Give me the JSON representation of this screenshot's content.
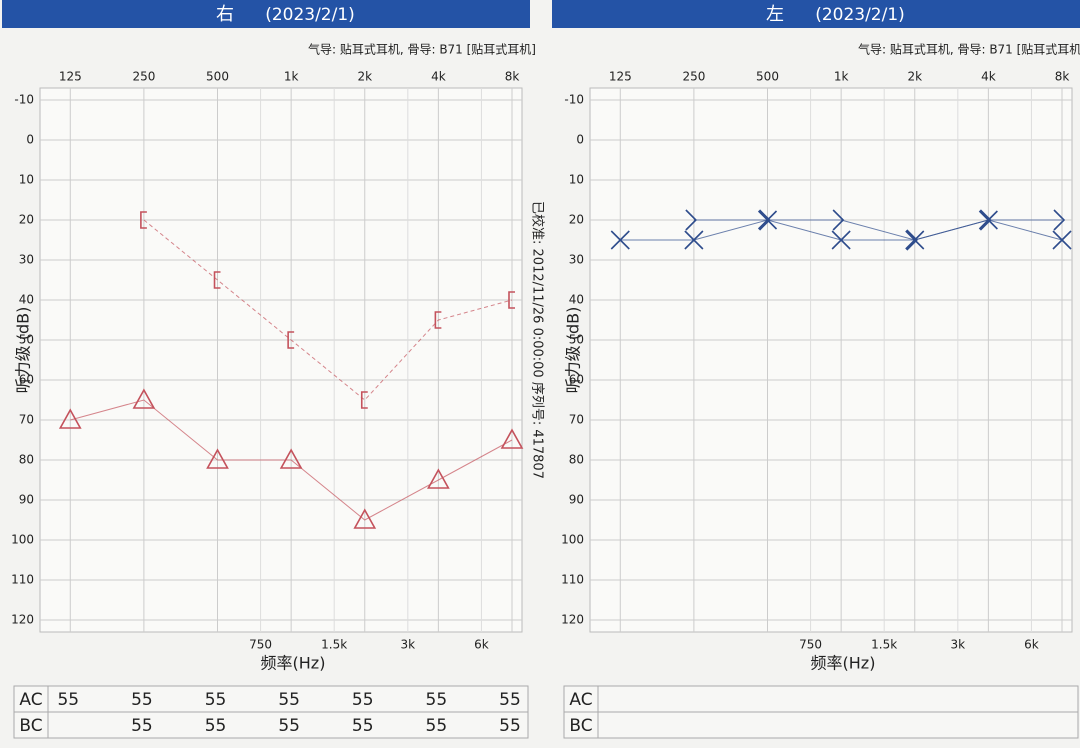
{
  "chart_data": [
    {
      "type": "line",
      "title_ear": "右",
      "title_date": "(2023/2/1)",
      "subtitle": "气导: 贴耳式耳机, 骨导: B71 [贴耳式耳机]",
      "ylabel": "听力级 (dB)",
      "xlabel": "频率(Hz)",
      "annotation": "已校准: 2012/11/26 0:00:00 序列号: 417807",
      "xscale": "log",
      "xlim": [
        94,
        8790
      ],
      "x": [
        125,
        250,
        500,
        1000,
        2000,
        4000,
        8000
      ],
      "xticks": [
        125,
        250,
        500,
        {
          "value": 1000,
          "label": "1k"
        },
        {
          "value": 2000,
          "label": "2k"
        },
        {
          "value": 4000,
          "label": "4k"
        },
        {
          "value": 8000,
          "label": "8k"
        }
      ],
      "xminor_ticks": [
        750,
        {
          "value": 1500,
          "label": "1.5k"
        },
        {
          "value": 3000,
          "label": "3k"
        },
        {
          "value": 6000,
          "label": "6k"
        }
      ],
      "ylim": [
        -13,
        123
      ],
      "y_inverted": true,
      "yticks": [
        -10,
        0,
        10,
        20,
        30,
        40,
        50,
        60,
        70,
        80,
        90,
        100,
        110,
        120
      ],
      "grid": true,
      "series": [
        {
          "color": "#c4525c",
          "marker": "triangle",
          "line_style": "solid",
          "values": [
            70,
            65,
            80,
            80,
            95,
            85,
            75
          ]
        },
        {
          "color": "#c4525c",
          "marker": "bracket-left",
          "line_style": "dashed",
          "values": [
            null,
            20,
            35,
            50,
            65,
            45,
            40
          ]
        }
      ],
      "table": {
        "rows": [
          {
            "label": "AC",
            "values": [
              55,
              55,
              55,
              55,
              55,
              55,
              55
            ]
          },
          {
            "label": "BC",
            "values": [
              null,
              55,
              55,
              55,
              55,
              55,
              55
            ]
          }
        ]
      }
    },
    {
      "type": "line",
      "title_ear": "左",
      "title_date": "(2023/2/1)",
      "subtitle": "气导: 贴耳式耳机, 骨导: B71 [贴耳式耳机]",
      "ylabel": "听力级 (dB)",
      "xlabel": "频率(Hz)",
      "xscale": "log",
      "xlim": [
        94,
        8790
      ],
      "x": [
        125,
        250,
        500,
        1000,
        2000,
        4000,
        8000
      ],
      "xticks": [
        125,
        250,
        500,
        {
          "value": 1000,
          "label": "1k"
        },
        {
          "value": 2000,
          "label": "2k"
        },
        {
          "value": 4000,
          "label": "4k"
        },
        {
          "value": 8000,
          "label": "8k"
        }
      ],
      "xminor_ticks": [
        750,
        {
          "value": 1500,
          "label": "1.5k"
        },
        {
          "value": 3000,
          "label": "3k"
        },
        {
          "value": 6000,
          "label": "6k"
        }
      ],
      "ylim": [
        -13,
        123
      ],
      "y_inverted": true,
      "yticks": [
        -10,
        0,
        10,
        20,
        30,
        40,
        50,
        60,
        70,
        80,
        90,
        100,
        110,
        120
      ],
      "grid": true,
      "series": [
        {
          "color": "#2e4c8c",
          "marker": "x",
          "line_style": "solid",
          "values": [
            25,
            25,
            20,
            25,
            25,
            20,
            25
          ]
        },
        {
          "color": "#2e4c8c",
          "marker": "bracket-right",
          "line_style": "solid",
          "values": [
            null,
            20,
            20,
            20,
            25,
            20,
            20
          ]
        }
      ],
      "table": {
        "rows": [
          {
            "label": "AC"
          },
          {
            "label": "BC"
          }
        ]
      }
    }
  ]
}
